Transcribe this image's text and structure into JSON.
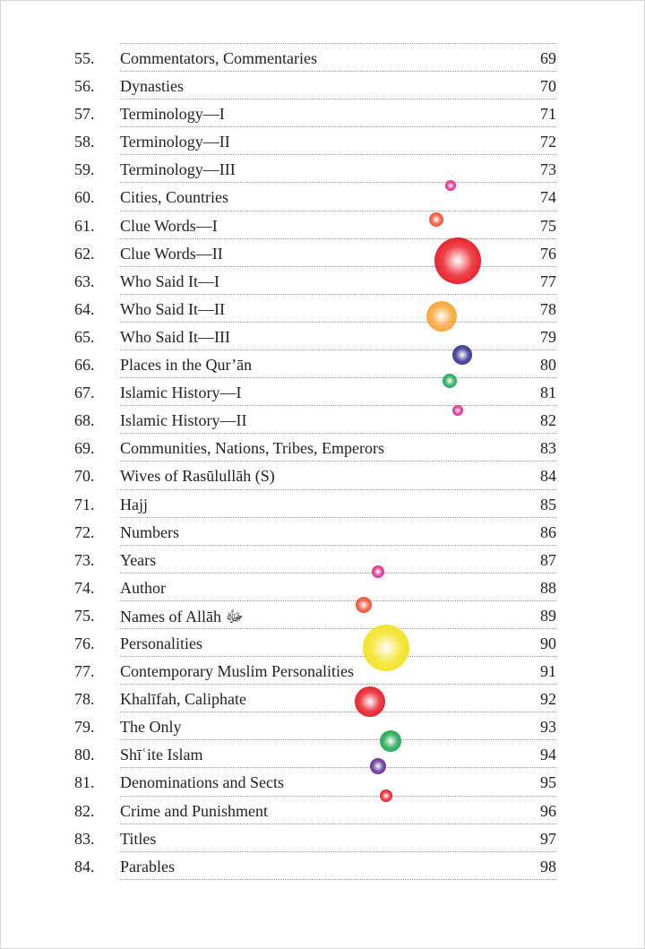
{
  "toc": [
    {
      "num": "55.",
      "title": "Commentators, Commentaries",
      "page": "69"
    },
    {
      "num": "56.",
      "title": "Dynasties",
      "page": "70"
    },
    {
      "num": "57.",
      "title": "Terminology—I",
      "page": "71"
    },
    {
      "num": "58.",
      "title": "Terminology—II",
      "page": "72"
    },
    {
      "num": "59.",
      "title": "Terminology—III",
      "page": "73"
    },
    {
      "num": "60.",
      "title": "Cities, Countries",
      "page": "74"
    },
    {
      "num": "61.",
      "title": "Clue Words—I",
      "page": "75"
    },
    {
      "num": "62.",
      "title": "Clue Words—II",
      "page": "76"
    },
    {
      "num": "63.",
      "title": "Who Said It—I",
      "page": "77"
    },
    {
      "num": "64.",
      "title": "Who Said It—II",
      "page": "78"
    },
    {
      "num": "65.",
      "title": "Who Said It—III",
      "page": "79"
    },
    {
      "num": "66.",
      "title": "Places in the Qur’ān",
      "page": "80"
    },
    {
      "num": "67.",
      "title": "Islamic History—I",
      "page": "81"
    },
    {
      "num": "68.",
      "title": "Islamic History—II",
      "page": "82"
    },
    {
      "num": "69.",
      "title": "Communities, Nations, Tribes, Emperors",
      "page": "83"
    },
    {
      "num": "70.",
      "title": "Wives of Rasūlullāh (S)",
      "page": "84"
    },
    {
      "num": "71.",
      "title": "Hajj",
      "page": "85"
    },
    {
      "num": "72.",
      "title": "Numbers",
      "page": "86"
    },
    {
      "num": "73.",
      "title": "Years",
      "page": "87"
    },
    {
      "num": "74.",
      "title": "Author",
      "page": "88"
    },
    {
      "num": "75.",
      "title": "Names of Allāh ﷻ",
      "page": "89"
    },
    {
      "num": "76.",
      "title": "Personalities",
      "page": "90"
    },
    {
      "num": "77.",
      "title": "Contemporary Muslim Personalities",
      "page": "91"
    },
    {
      "num": "78.",
      "title": "Khalīfah, Caliphate",
      "page": "92"
    },
    {
      "num": "79.",
      "title": "The Only",
      "page": "93"
    },
    {
      "num": "80.",
      "title": "Shīʿite Islam",
      "page": "94"
    },
    {
      "num": "81.",
      "title": "Denominations and Sects",
      "page": "95"
    },
    {
      "num": "82.",
      "title": "Crime and Punishment",
      "page": "96"
    },
    {
      "num": "83.",
      "title": "Titles",
      "page": "97"
    },
    {
      "num": "84.",
      "title": "Parables",
      "page": "98"
    }
  ],
  "decoration_colors": [
    "#e0218a",
    "#f04a2a",
    "#e8141e",
    "#f7a22e",
    "#2b2a8c",
    "#17a34a",
    "#e0218a",
    "#e0218a",
    "#f04a2a",
    "#f2e21a",
    "#e8141e",
    "#17a34a",
    "#5b2b91",
    "#e8141e"
  ]
}
